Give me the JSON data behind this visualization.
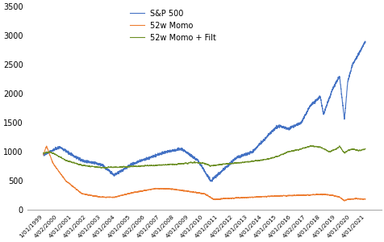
{
  "ylim": [
    0,
    3500
  ],
  "yticks": [
    0,
    500,
    1000,
    1500,
    2000,
    2500,
    3000,
    3500
  ],
  "colors": {
    "sp500": "#4472C4",
    "momo": "#ED7D31",
    "momo_filt": "#6B8E23"
  },
  "legend_labels": [
    "S&P 500",
    "52w Momo",
    "52w Momo + Filt"
  ],
  "x_labels": [
    "1/01/1999",
    "4/02/2000",
    "4/01/2001",
    "4/01/2002",
    "4/01/2003",
    "4/01/2004",
    "4/01/2005",
    "4/02/2006",
    "4/01/2007",
    "4/01/2008",
    "4/01/2009",
    "4/01/2010",
    "4/01/2011",
    "4/02/2012",
    "4/01/2013",
    "4/01/2014",
    "4/01/2015",
    "4/01/2016",
    "4/02/2017",
    "4/01/2018",
    "4/01/2019",
    "4/01/2020",
    "4/01/2021"
  ],
  "background_color": "#FFFFFF",
  "line_width": 0.8
}
